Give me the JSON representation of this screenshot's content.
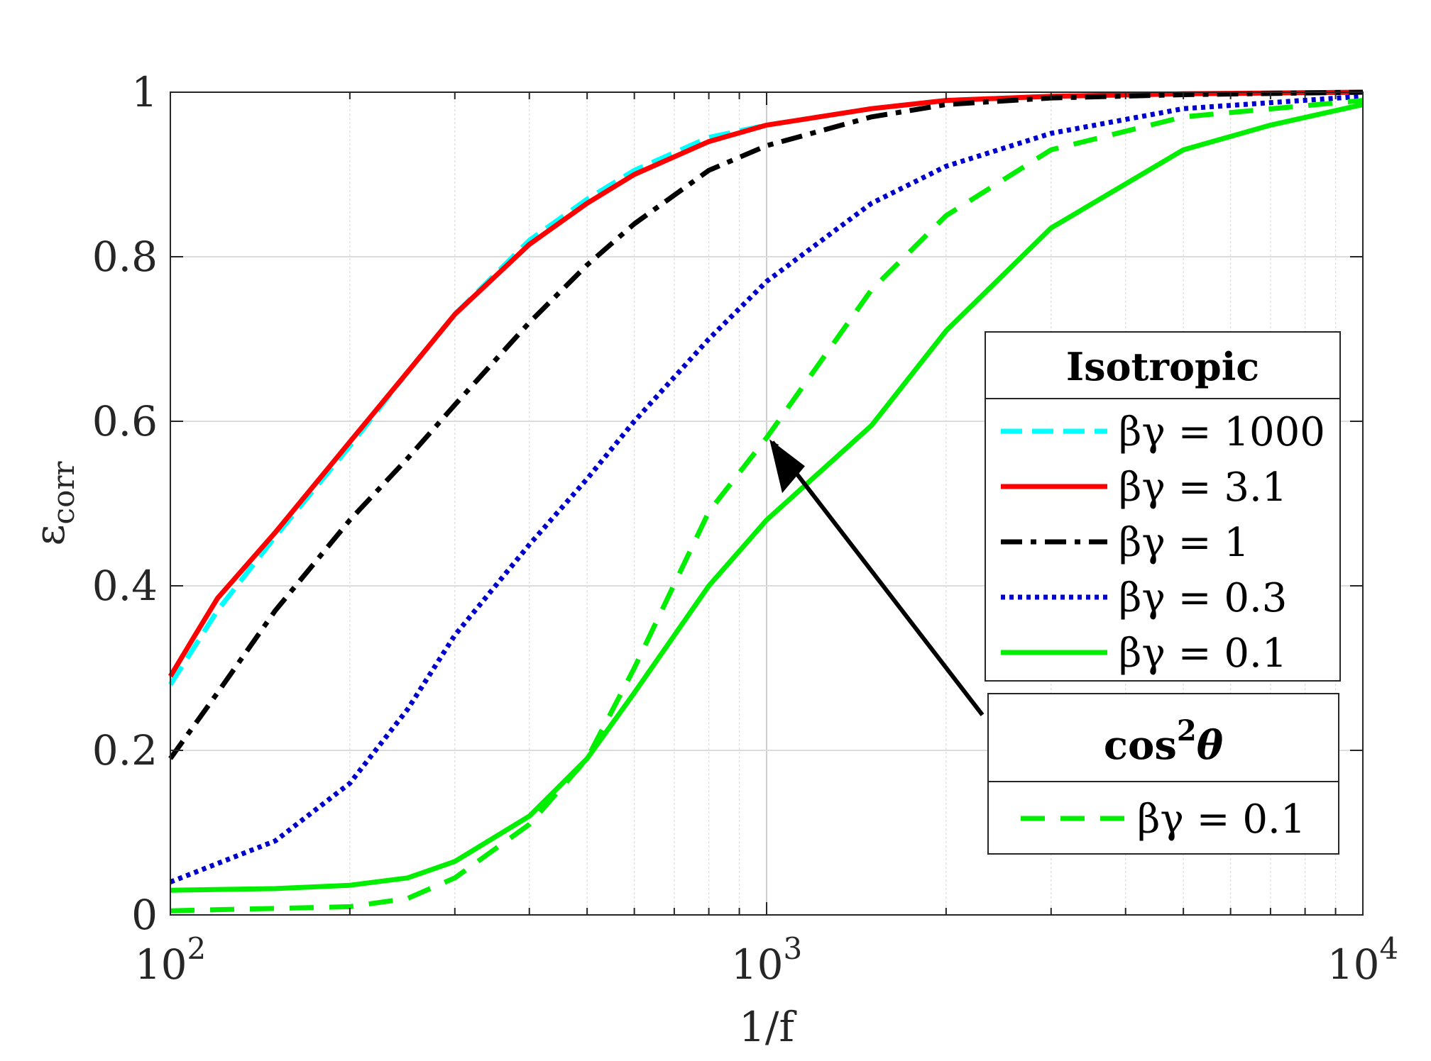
{
  "chart_data": {
    "type": "line",
    "xscale": "log",
    "xlabel": "1/f",
    "ylabel": "ε",
    "ylabel_sub": "corr",
    "xlim": [
      100,
      10000
    ],
    "ylim": [
      0,
      1
    ],
    "grid": true,
    "x_ticks": [
      {
        "value": 100,
        "base": "10",
        "exp": "2"
      },
      {
        "value": 1000,
        "base": "10",
        "exp": "3"
      },
      {
        "value": 10000,
        "base": "10",
        "exp": "4"
      }
    ],
    "y_ticks": [
      {
        "value": 0,
        "label": "0"
      },
      {
        "value": 0.2,
        "label": "0.2"
      },
      {
        "value": 0.4,
        "label": "0.4"
      },
      {
        "value": 0.6,
        "label": "0.6"
      },
      {
        "value": 0.8,
        "label": "0.8"
      },
      {
        "value": 1,
        "label": "1"
      }
    ],
    "series": [
      {
        "name": "βγ = 1000",
        "group": "isotropic",
        "color": "#00ffff",
        "style": "dashed",
        "points": [
          [
            100,
            0.28
          ],
          [
            120,
            0.37
          ],
          [
            150,
            0.46
          ],
          [
            200,
            0.57
          ],
          [
            250,
            0.66
          ],
          [
            300,
            0.73
          ],
          [
            400,
            0.82
          ],
          [
            500,
            0.87
          ],
          [
            600,
            0.905
          ],
          [
            800,
            0.945
          ],
          [
            1000,
            0.96
          ],
          [
            1500,
            0.98
          ],
          [
            2000,
            0.99
          ],
          [
            3000,
            0.995
          ],
          [
            5000,
            0.998
          ],
          [
            10000,
            1.0
          ]
        ]
      },
      {
        "name": "βγ = 3.1",
        "group": "isotropic",
        "color": "#ff0000",
        "style": "solid",
        "points": [
          [
            100,
            0.29
          ],
          [
            110,
            0.34
          ],
          [
            120,
            0.385
          ],
          [
            150,
            0.465
          ],
          [
            200,
            0.575
          ],
          [
            250,
            0.66
          ],
          [
            300,
            0.73
          ],
          [
            400,
            0.815
          ],
          [
            500,
            0.865
          ],
          [
            600,
            0.9
          ],
          [
            800,
            0.94
          ],
          [
            1000,
            0.96
          ],
          [
            1500,
            0.98
          ],
          [
            2000,
            0.99
          ],
          [
            3000,
            0.995
          ],
          [
            5000,
            0.998
          ],
          [
            10000,
            1.0
          ]
        ]
      },
      {
        "name": "βγ = 1",
        "group": "isotropic",
        "color": "#000000",
        "style": "dashdot",
        "points": [
          [
            100,
            0.19
          ],
          [
            120,
            0.27
          ],
          [
            150,
            0.37
          ],
          [
            200,
            0.48
          ],
          [
            250,
            0.555
          ],
          [
            300,
            0.62
          ],
          [
            400,
            0.72
          ],
          [
            500,
            0.79
          ],
          [
            600,
            0.84
          ],
          [
            800,
            0.905
          ],
          [
            1000,
            0.935
          ],
          [
            1500,
            0.97
          ],
          [
            2000,
            0.985
          ],
          [
            3000,
            0.993
          ],
          [
            5000,
            0.997
          ],
          [
            10000,
            1.0
          ]
        ]
      },
      {
        "name": "βγ = 0.3",
        "group": "isotropic",
        "color": "#0000cc",
        "style": "dotted",
        "points": [
          [
            100,
            0.04
          ],
          [
            150,
            0.09
          ],
          [
            200,
            0.16
          ],
          [
            250,
            0.25
          ],
          [
            300,
            0.34
          ],
          [
            400,
            0.45
          ],
          [
            500,
            0.53
          ],
          [
            600,
            0.6
          ],
          [
            800,
            0.7
          ],
          [
            1000,
            0.77
          ],
          [
            1500,
            0.865
          ],
          [
            2000,
            0.91
          ],
          [
            3000,
            0.95
          ],
          [
            5000,
            0.98
          ],
          [
            10000,
            0.995
          ]
        ]
      },
      {
        "name": "βγ = 0.1",
        "group": "isotropic",
        "color": "#00ee00",
        "style": "solid",
        "points": [
          [
            100,
            0.03
          ],
          [
            150,
            0.032
          ],
          [
            200,
            0.036
          ],
          [
            250,
            0.045
          ],
          [
            300,
            0.065
          ],
          [
            400,
            0.12
          ],
          [
            500,
            0.19
          ],
          [
            600,
            0.27
          ],
          [
            800,
            0.4
          ],
          [
            1000,
            0.48
          ],
          [
            1500,
            0.595
          ],
          [
            2000,
            0.71
          ],
          [
            3000,
            0.835
          ],
          [
            5000,
            0.93
          ],
          [
            7000,
            0.96
          ],
          [
            10000,
            0.985
          ]
        ]
      },
      {
        "name": "βγ = 0.1",
        "group": "cos2",
        "color": "#00ee00",
        "style": "longdash",
        "points": [
          [
            100,
            0.005
          ],
          [
            200,
            0.01
          ],
          [
            250,
            0.02
          ],
          [
            300,
            0.045
          ],
          [
            400,
            0.11
          ],
          [
            500,
            0.19
          ],
          [
            600,
            0.3
          ],
          [
            800,
            0.49
          ],
          [
            1000,
            0.58
          ],
          [
            1500,
            0.76
          ],
          [
            2000,
            0.85
          ],
          [
            3000,
            0.93
          ],
          [
            5000,
            0.97
          ],
          [
            10000,
            0.99
          ]
        ]
      }
    ],
    "legends": [
      {
        "id": "isotropic",
        "title": "Isotropic",
        "entries": [
          0,
          1,
          2,
          3,
          4
        ]
      },
      {
        "id": "cos2",
        "title_main": "cos",
        "title_sup": "2",
        "title_var": "θ",
        "entries": [
          5
        ]
      }
    ],
    "annotation": {
      "type": "arrow",
      "to": [
        1000,
        0.58
      ]
    }
  }
}
